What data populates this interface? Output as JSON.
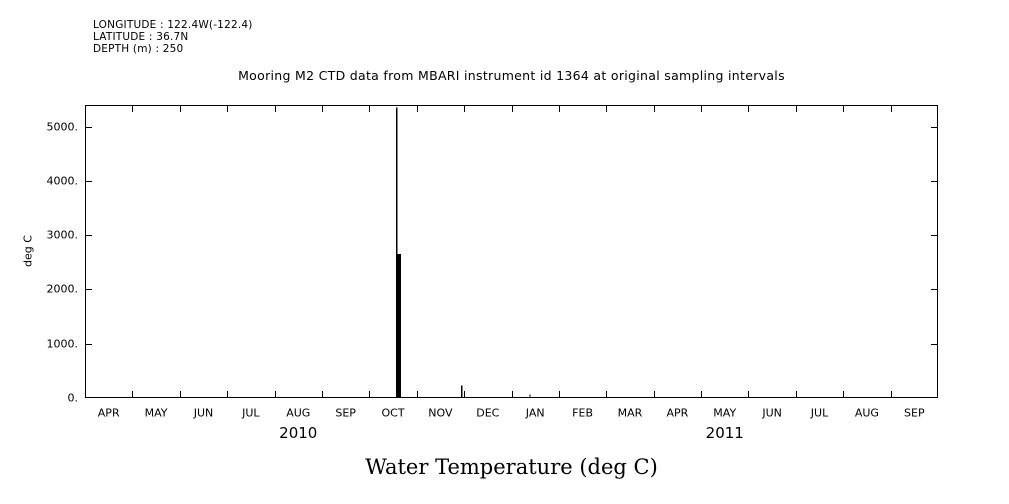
{
  "header": {
    "lines": [
      "LONGITUDE : 122.4W(-122.4)",
      "LATITUDE : 36.7N",
      "DEPTH (m) : 250"
    ]
  },
  "chart_data": {
    "type": "line",
    "title": "Mooring M2 CTD data from MBARI instrument id 1364 at original sampling intervals",
    "caption": "Water Temperature (deg C)",
    "ylabel": "deg C",
    "xlabel": "",
    "yticks": [
      0,
      1000,
      2000,
      3000,
      4000,
      5000
    ],
    "ytick_labels": [
      "0.",
      "1000.",
      "2000.",
      "3000.",
      "4000.",
      "5000."
    ],
    "ylim": [
      0,
      5400
    ],
    "x_months": [
      "APR",
      "MAY",
      "JUN",
      "JUL",
      "AUG",
      "SEP",
      "OCT",
      "NOV",
      "DEC",
      "JAN",
      "FEB",
      "MAR",
      "APR",
      "MAY",
      "JUN",
      "JUL",
      "AUG",
      "SEP"
    ],
    "x_range": "APR 2010 to SEP 2011",
    "year_labels": [
      {
        "label": "2010",
        "month_index": 4.5
      },
      {
        "label": "2011",
        "month_index": 13.5
      }
    ],
    "grid": false,
    "baseline_value": 0,
    "baseline_desc": "series sits at ~0 deg C along the full time range",
    "spikes": [
      {
        "x_month": 6.58,
        "peak": 5350,
        "thickness_px": 1.2,
        "desc": "thin spike mid-OCT 2010 reaching top of axis (~5350)"
      },
      {
        "x_month": 6.63,
        "peak": 2650,
        "thickness_px": 3.5,
        "desc": "thick spike mid-OCT 2010 (~2650)"
      },
      {
        "x_month": 7.95,
        "peak": 230,
        "thickness_px": 1.2,
        "desc": "small spike late NOV 2010 (~230)"
      },
      {
        "x_month": 9.39,
        "peak": 60,
        "thickness_px": 1.0,
        "desc": "tiny blip mid-JAN 2011 (~60)"
      }
    ]
  }
}
